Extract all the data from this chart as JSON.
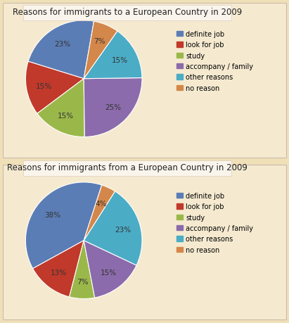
{
  "chart1": {
    "title": "Reasons for immigrants to a European Country in 2009",
    "labels": [
      "definite job",
      "look for job",
      "study",
      "accompany / family",
      "other reasons",
      "no reason"
    ],
    "values": [
      23,
      15,
      15,
      25,
      15,
      7
    ],
    "colors": [
      "#5b7db5",
      "#c0392b",
      "#9ab84a",
      "#8b6bab",
      "#4bacc6",
      "#d4874a"
    ],
    "startangle": 80
  },
  "chart2": {
    "title": "Reasons for immigrants from a European Country in 2009",
    "labels": [
      "definite job",
      "look for job",
      "study",
      "accompany / family",
      "other reasons",
      "no reason"
    ],
    "values": [
      38,
      13,
      7,
      15,
      23,
      4
    ],
    "colors": [
      "#5b7db5",
      "#c0392b",
      "#9ab84a",
      "#8b6bab",
      "#4bacc6",
      "#d4874a"
    ],
    "startangle": 72
  },
  "background_color": "#f0e0b8",
  "panel_color": "#f5ead0",
  "legend_labels": [
    "definite job",
    "look for job",
    "study",
    "accompany / family",
    "other reasons",
    "no reason"
  ],
  "legend_colors": [
    "#5b7db5",
    "#c0392b",
    "#9ab84a",
    "#8b6bab",
    "#4bacc6",
    "#d4874a"
  ],
  "title_fontsize": 8.5,
  "label_fontsize": 7.5,
  "legend_fontsize": 7.0
}
